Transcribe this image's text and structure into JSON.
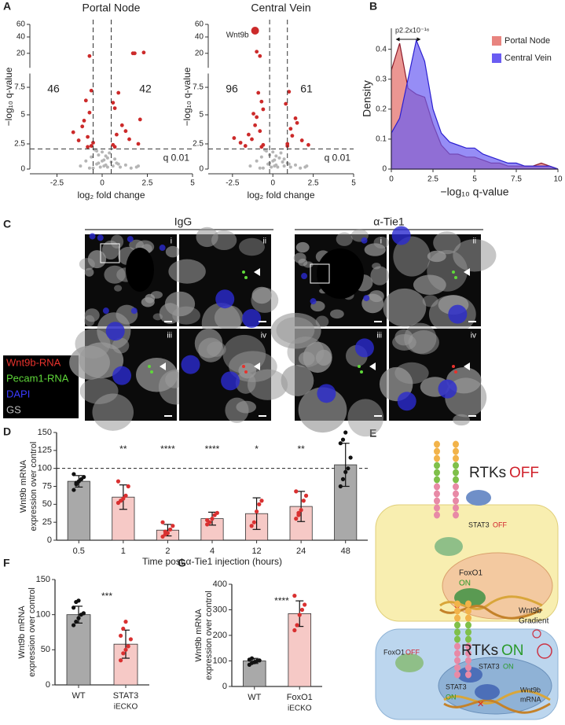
{
  "panel_labels": [
    "A",
    "B",
    "C",
    "D",
    "E",
    "F",
    "G"
  ],
  "chart_data": [
    {
      "type": "volcano",
      "title": "Portal Node",
      "x_label": "log₂ fold change",
      "y_label": "−log₁₀ q-value",
      "xlim": [
        -4,
        5
      ],
      "xticks": [
        -2.5,
        0,
        2.5,
        5
      ],
      "ylim": [
        0,
        60
      ],
      "yticks": [
        0,
        2.5,
        5,
        7.5,
        20,
        40,
        60
      ],
      "q_line": 2,
      "fold_lines": [
        -0.5,
        0.5
      ],
      "threshold_label": "q 0.01",
      "counts": [
        46,
        42
      ],
      "series": [
        {
          "color": "#b5b5b5",
          "x": [
            -1.2,
            -0.9,
            -0.6,
            -0.4,
            -0.3,
            -0.2,
            -0.1,
            0,
            0.1,
            0.2,
            0.3,
            0.4,
            0.5,
            0.6,
            0.8,
            1.0,
            1.3,
            1.6,
            2.0,
            -0.5,
            -0.2,
            0.1,
            0.3,
            -0.7,
            0.7,
            0.0,
            -0.3,
            0.2,
            0.9,
            1.9
          ],
          "values": [
            0.3,
            0.8,
            1.2,
            1.9,
            0.5,
            1.4,
            0.2,
            1.7,
            0.9,
            0.4,
            1.1,
            1.6,
            0.7,
            0.3,
            0.6,
            0.2,
            0.4,
            0.1,
            0.3,
            0.1,
            0.6,
            0.3,
            0.2,
            0.1,
            1.0,
            0.8,
            1.8,
            1.3,
            0.5,
            0.2
          ]
        },
        {
          "color": "#cc2a2a",
          "x": [
            -0.6,
            -0.8,
            -1.0,
            -0.7,
            -1.3,
            -0.9,
            -0.6,
            -1.6,
            -0.7,
            -0.5,
            -1.1,
            -0.8,
            0.6,
            0.8,
            1.1,
            0.7,
            1.5,
            0.9,
            1.3,
            2.0,
            0.6,
            1.8,
            2.3,
            1.7,
            2.1,
            0.7
          ],
          "values": [
            2.3,
            3.1,
            4.5,
            5.2,
            2.8,
            6.3,
            7.2,
            3.5,
            19,
            2.6,
            4.0,
            2.2,
            2.4,
            3.3,
            4.1,
            5.6,
            2.9,
            7.0,
            3.6,
            2.5,
            6.1,
            20,
            21,
            20,
            4.6,
            2.2
          ]
        }
      ]
    },
    {
      "type": "volcano",
      "title": "Central Vein",
      "x_label": "log₂ fold change",
      "y_label": "−log₁₀ q-value",
      "xlim": [
        -4,
        5
      ],
      "xticks": [
        -2.5,
        0,
        2.5,
        5
      ],
      "ylim": [
        0,
        60
      ],
      "yticks": [
        0,
        2.5,
        5,
        7.5,
        20,
        40,
        60
      ],
      "q_line": 2,
      "fold_lines": [
        -0.2,
        0.9
      ],
      "threshold_label": "q 0.01",
      "counts": [
        96,
        61
      ],
      "highlight": {
        "label": "Wnt9b",
        "x": -1.1,
        "y": 50
      },
      "series": [
        {
          "color": "#b5b5b5",
          "x": [
            -1.4,
            -1.0,
            -0.7,
            -0.5,
            -0.3,
            -0.2,
            -0.1,
            0,
            0.1,
            0.2,
            0.4,
            0.5,
            0.6,
            0.7,
            0.9,
            1.1,
            1.4,
            1.7,
            2.1,
            -0.6,
            -0.2,
            0.1,
            0.3,
            -0.8,
            0.7,
            0.0,
            -0.4,
            0.2,
            1.0,
            2.0
          ],
          "values": [
            0.3,
            0.8,
            1.2,
            1.9,
            0.5,
            1.4,
            0.2,
            1.7,
            0.9,
            0.4,
            1.1,
            1.6,
            0.7,
            0.3,
            0.6,
            0.2,
            0.4,
            0.1,
            0.3,
            0.1,
            0.6,
            0.3,
            0.2,
            0.1,
            1.0,
            0.8,
            1.8,
            1.3,
            0.5,
            0.2
          ]
        },
        {
          "color": "#cc2a2a",
          "x": [
            -0.6,
            -0.8,
            -1.0,
            -1.3,
            -0.7,
            -1.5,
            -0.9,
            -2.0,
            -0.6,
            -1.1,
            -1.7,
            -0.8,
            -2.4,
            -0.7,
            -1.2,
            -1.0,
            0.9,
            1.1,
            1.4,
            0.8,
            1.8,
            1.2,
            2.2,
            1.0,
            0.9,
            1.5
          ],
          "values": [
            2.4,
            3.6,
            4.8,
            2.9,
            6.2,
            3.3,
            7.0,
            2.6,
            5.5,
            4.1,
            2.3,
            19,
            3.0,
            2.2,
            5.1,
            22,
            2.5,
            3.8,
            4.7,
            6.0,
            2.8,
            3.2,
            2.4,
            7.1,
            2.3,
            4.3
          ]
        }
      ]
    },
    {
      "type": "density",
      "x_label": "−log₁₀ q-value",
      "y_label": "Density",
      "annotation": "p2.2x10⁻¹⁶",
      "xlim": [
        0,
        10
      ],
      "xticks": [
        0,
        2.5,
        5,
        7.5,
        10
      ],
      "ylim": [
        0,
        0.47
      ],
      "yticks": [
        0,
        0.1,
        0.2,
        0.3,
        0.4
      ],
      "legend": "upper right",
      "x": [
        0,
        0.5,
        1,
        1.5,
        2,
        2.5,
        3,
        3.5,
        4,
        4.5,
        5,
        5.5,
        6,
        6.5,
        7,
        7.5,
        8,
        8.5,
        9,
        9.5,
        10
      ],
      "series": [
        {
          "name": "Portal Node",
          "color": "#e8847f",
          "edge_color": "#8b1a2a",
          "values": [
            0.33,
            0.42,
            0.27,
            0.25,
            0.24,
            0.15,
            0.08,
            0.05,
            0.05,
            0.04,
            0.04,
            0.03,
            0.02,
            0.02,
            0.01,
            0.01,
            0.01,
            0.01,
            0.02,
            0.01,
            0.0
          ]
        },
        {
          "name": "Central Vein",
          "color": "#6a5cf2",
          "edge_color": "#2b1fd0",
          "values": [
            0.12,
            0.17,
            0.3,
            0.43,
            0.36,
            0.2,
            0.12,
            0.09,
            0.08,
            0.07,
            0.07,
            0.05,
            0.04,
            0.03,
            0.02,
            0.02,
            0.01,
            0.01,
            0.01,
            0.01,
            0.0
          ]
        }
      ]
    },
    {
      "type": "bar",
      "x_label": "Time post α-Tie1 injection (hours)",
      "y_label": [
        "Wnt9b mRNA",
        "expression over control"
      ],
      "categories": [
        "0.5",
        "1",
        "2",
        "4",
        "12",
        "24",
        "48"
      ],
      "values": [
        82,
        60,
        14,
        30,
        37,
        47,
        105
      ],
      "errors": [
        8,
        17,
        8,
        9,
        22,
        21,
        30
      ],
      "colors": [
        "#a9a9a9",
        "#f6c9c6",
        "#f6c9c6",
        "#f6c9c6",
        "#f6c9c6",
        "#f6c9c6",
        "#a9a9a9"
      ],
      "point_colors": [
        "#111111",
        "#d93030",
        "#d93030",
        "#d93030",
        "#d93030",
        "#d93030",
        "#111111"
      ],
      "annotations": [
        null,
        "**",
        "****",
        "****",
        "*",
        "**",
        null
      ],
      "points": [
        [
          70,
          78,
          82,
          85,
          88,
          92,
          80
        ],
        [
          52,
          55,
          58,
          62,
          75,
          82
        ],
        [
          5,
          8,
          10,
          15,
          20,
          25,
          12
        ],
        [
          22,
          25,
          30,
          35,
          38,
          28
        ],
        [
          20,
          25,
          40,
          50,
          55
        ],
        [
          30,
          35,
          42,
          55,
          62,
          68,
          38
        ],
        [
          75,
          85,
          95,
          100,
          115,
          135,
          140,
          150
        ]
      ],
      "ref_line": 100,
      "ylim": [
        0,
        150
      ],
      "yticks": [
        0,
        25,
        50,
        75,
        100,
        125,
        150
      ]
    },
    {
      "type": "bar",
      "y_label": [
        "Wnt9b mRNA",
        "expression over control"
      ],
      "categories": [
        "WT",
        "STAT3"
      ],
      "category_sublabels": [
        null,
        "iECKO"
      ],
      "values": [
        100,
        58
      ],
      "errors": [
        12,
        20
      ],
      "colors": [
        "#a9a9a9",
        "#f6c9c6"
      ],
      "point_colors": [
        "#111111",
        "#d93030"
      ],
      "annotation": "***",
      "points": [
        [
          85,
          90,
          95,
          100,
          102,
          110,
          118,
          120
        ],
        [
          35,
          45,
          50,
          55,
          65,
          70,
          80,
          90
        ]
      ],
      "ylim": [
        0,
        150
      ],
      "yticks": [
        0,
        50,
        100,
        150
      ]
    },
    {
      "type": "bar",
      "y_label": [
        "Wnt9b mRNA",
        "expression over control"
      ],
      "categories": [
        "WT",
        "FoxO1"
      ],
      "category_sublabels": [
        null,
        "iECKO"
      ],
      "values": [
        100,
        285
      ],
      "errors": [
        10,
        50
      ],
      "colors": [
        "#a9a9a9",
        "#f6c9c6"
      ],
      "point_colors": [
        "#111111",
        "#d93030"
      ],
      "annotation": "****",
      "points": [
        [
          85,
          92,
          95,
          100,
          102,
          105,
          110
        ],
        [
          220,
          240,
          280,
          300,
          320,
          355
        ]
      ],
      "ylim": [
        0,
        400
      ],
      "yticks": [
        0,
        100,
        200,
        300,
        400
      ]
    }
  ],
  "microscopy": {
    "groups": [
      {
        "title": "IgG",
        "tiles": [
          "i",
          "ii",
          "iii",
          "iv"
        ]
      },
      {
        "title": "α-Tie1",
        "tiles": [
          "i",
          "ii",
          "iii",
          "iv"
        ]
      }
    ],
    "legend": [
      {
        "label": "Wnt9b-RNA",
        "color": "#e8322c"
      },
      {
        "label": "Pecam1-RNA",
        "color": "#5fd83a"
      },
      {
        "label": "DAPI",
        "color": "#3a3aff"
      },
      {
        "label": "GS",
        "color": "#bdbdbd"
      }
    ]
  },
  "diagram": {
    "off_cell": {
      "rtk": "RTKs",
      "state": "OFF",
      "stat3": "STAT3",
      "stat3_state": "OFF",
      "foxo1": "FoxO1",
      "foxo1_state": "ON"
    },
    "on_cell": {
      "rtk": "RTKs",
      "state": "ON",
      "gradient": [
        "Wnt9b",
        "Gradient"
      ],
      "foxo1": "FoxO1",
      "foxo1_state": "OFF",
      "stat3_cyto": "STAT3",
      "stat3_cyto_state": "ON",
      "stat3_nuc": "STAT3",
      "stat3_nuc_state": "ON",
      "mrna": [
        "Wnt9b",
        "mRNA"
      ]
    }
  }
}
